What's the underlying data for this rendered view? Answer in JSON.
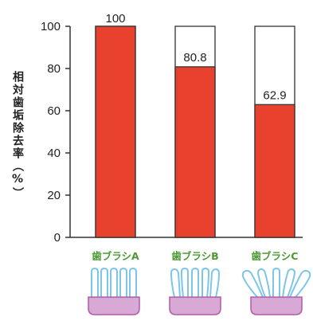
{
  "chart_data": {
    "type": "bar",
    "title": "",
    "xlabel": "",
    "ylabel": "相対歯垢除去率（%）",
    "ylim": [
      0,
      100
    ],
    "yticks": [
      0,
      20,
      40,
      60,
      80,
      100
    ],
    "categories": [
      "歯ブラシA",
      "歯ブラシB",
      "歯ブラシC"
    ],
    "values": [
      100,
      80.8,
      62.9
    ],
    "data_labels": [
      "100",
      "80.8",
      "62.9"
    ],
    "reference_value": 100,
    "grid": false,
    "legend": "none",
    "icons": [
      "toothbrush-straight-bristles-icon",
      "toothbrush-slight-splayed-bristles-icon",
      "toothbrush-splayed-bristles-icon"
    ]
  },
  "colors": {
    "bar": "#e8412e",
    "bar_outline": "#333333",
    "category_text": "#4a9a34",
    "brush_head": "#d8a9d4",
    "brush_head_stroke": "#b05aa8",
    "bristle": "#7ec6e8"
  }
}
